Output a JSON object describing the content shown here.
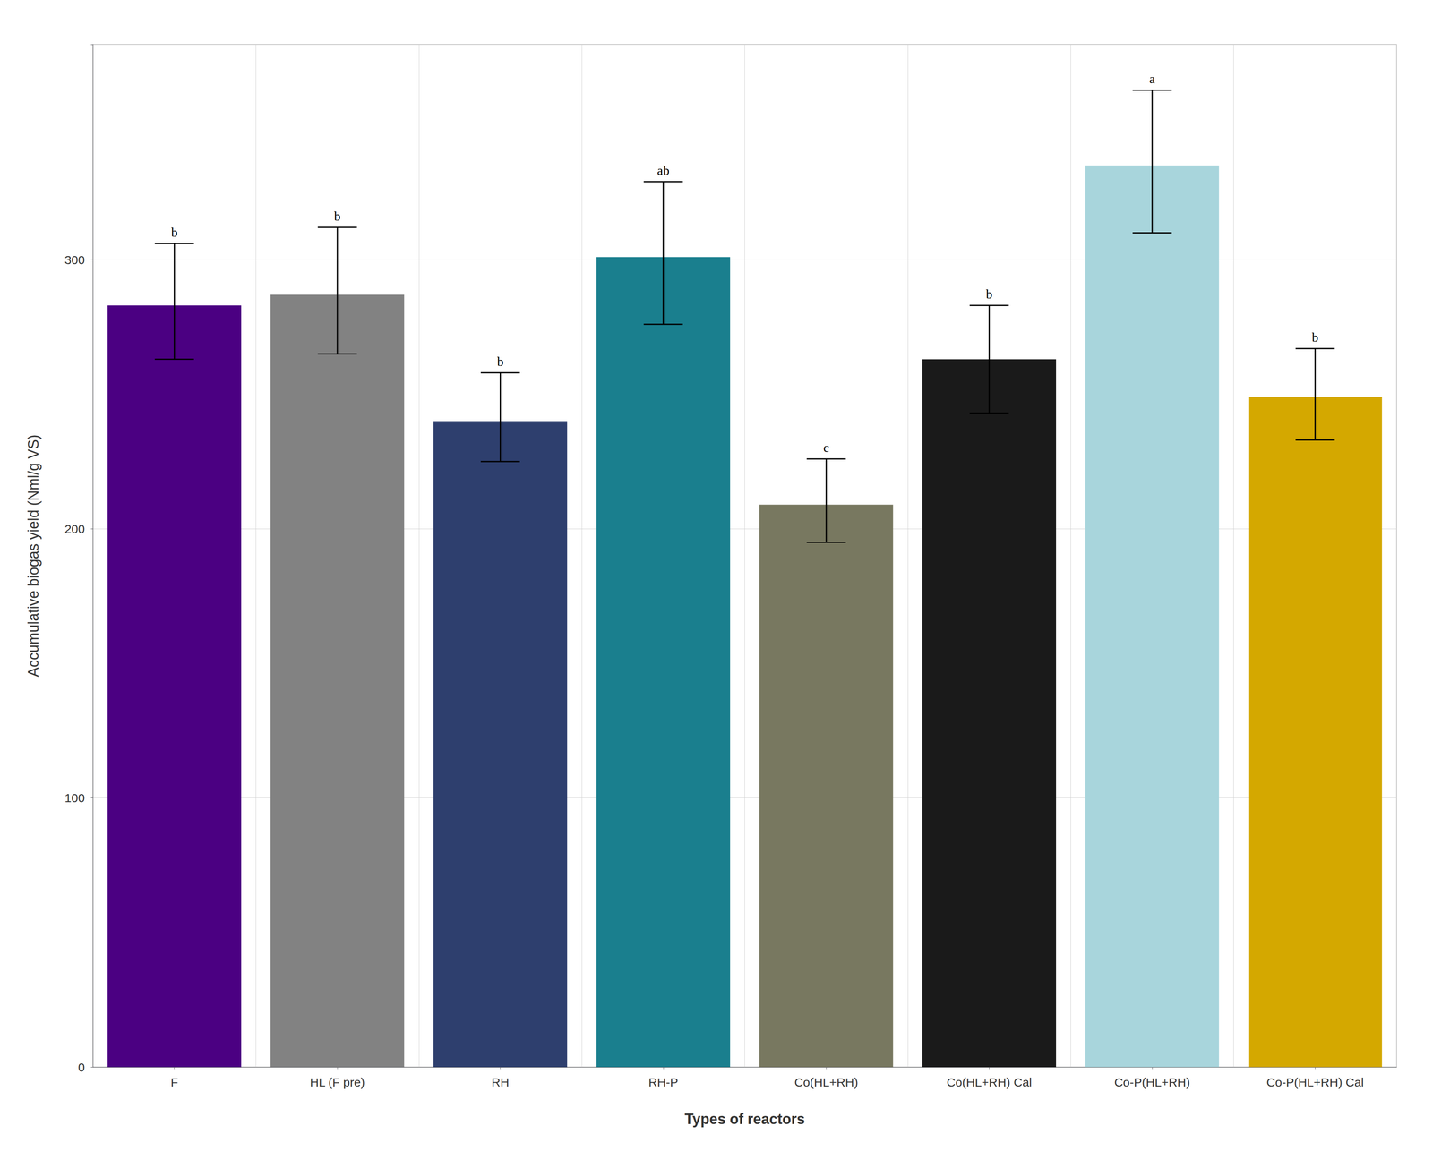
{
  "chart_data": {
    "type": "bar",
    "categories": [
      "F",
      "HL (F pre)",
      "RH",
      "RH-P",
      "Co(HL+RH)",
      "Co(HL+RH) Cal",
      "Co-P(HL+RH)",
      "Co-P(HL+RH) Cal"
    ],
    "values": [
      283,
      287,
      240,
      301,
      209,
      263,
      335,
      249
    ],
    "colors": [
      "#4B0082",
      "#828282",
      "#2E3F6E",
      "#1A7F8E",
      "#787860",
      "#1A1A1A",
      "#A8D5DC",
      "#D4A800"
    ],
    "error_upper": [
      23,
      25,
      18,
      28,
      17,
      20,
      28,
      18
    ],
    "error_lower": [
      20,
      22,
      15,
      25,
      14,
      20,
      25,
      16
    ],
    "annotations": [
      "b",
      "b",
      "b",
      "ab",
      "c",
      "b",
      "a",
      "b"
    ],
    "xlabel": "Types of reactors",
    "ylabel": "Accumulative biogas yield (Nml/g VS)",
    "ylim": [
      0,
      380
    ],
    "yticks": [
      0,
      100,
      200,
      300
    ],
    "grid": true
  }
}
